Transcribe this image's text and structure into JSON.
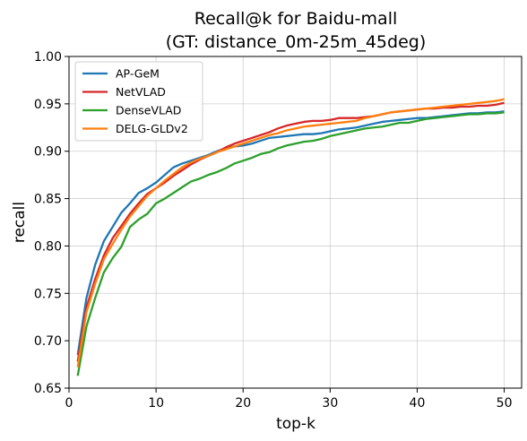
{
  "chart_data": {
    "type": "line",
    "title_lines": [
      "Recall@k for Baidu-mall",
      "(GT: distance_0m-25m_45deg)"
    ],
    "xlabel": "top-k",
    "ylabel": "recall",
    "xlim": [
      0,
      52
    ],
    "ylim": [
      0.65,
      1.0
    ],
    "xticks": [
      0,
      10,
      20,
      30,
      40,
      50
    ],
    "yticks": [
      0.65,
      0.7,
      0.75,
      0.8,
      0.85,
      0.9,
      0.95,
      1.0
    ],
    "xtick_labels": [
      "0",
      "10",
      "20",
      "30",
      "40",
      "50"
    ],
    "ytick_labels": [
      "0.65",
      "0.70",
      "0.75",
      "0.80",
      "0.85",
      "0.90",
      "0.95",
      "1.00"
    ],
    "grid": true,
    "legend_position": "top-left",
    "x": [
      1,
      2,
      3,
      4,
      5,
      6,
      7,
      8,
      9,
      10,
      11,
      12,
      13,
      14,
      15,
      16,
      17,
      18,
      19,
      20,
      21,
      22,
      23,
      24,
      25,
      26,
      27,
      28,
      29,
      30,
      31,
      32,
      33,
      34,
      35,
      36,
      37,
      38,
      39,
      40,
      41,
      42,
      43,
      44,
      45,
      46,
      47,
      48,
      49,
      50
    ],
    "series": [
      {
        "name": "AP-GeM",
        "color": "#1f77b4",
        "values": [
          0.685,
          0.745,
          0.78,
          0.805,
          0.82,
          0.835,
          0.845,
          0.856,
          0.861,
          0.867,
          0.875,
          0.883,
          0.887,
          0.89,
          0.893,
          0.896,
          0.9,
          0.903,
          0.905,
          0.906,
          0.908,
          0.911,
          0.914,
          0.915,
          0.916,
          0.917,
          0.918,
          0.918,
          0.919,
          0.921,
          0.923,
          0.924,
          0.925,
          0.927,
          0.929,
          0.931,
          0.932,
          0.933,
          0.934,
          0.935,
          0.935,
          0.936,
          0.937,
          0.938,
          0.939,
          0.94,
          0.94,
          0.941,
          0.941,
          0.942
        ]
      },
      {
        "name": "NetVLAD",
        "color": "#d62728",
        "values": [
          0.678,
          0.735,
          0.765,
          0.79,
          0.808,
          0.821,
          0.834,
          0.845,
          0.855,
          0.861,
          0.867,
          0.874,
          0.88,
          0.886,
          0.891,
          0.895,
          0.899,
          0.904,
          0.908,
          0.911,
          0.914,
          0.917,
          0.92,
          0.924,
          0.927,
          0.929,
          0.931,
          0.932,
          0.932,
          0.933,
          0.935,
          0.935,
          0.935,
          0.936,
          0.937,
          0.939,
          0.941,
          0.942,
          0.943,
          0.944,
          0.945,
          0.945,
          0.946,
          0.946,
          0.947,
          0.947,
          0.948,
          0.948,
          0.949,
          0.951
        ]
      },
      {
        "name": "DenseVLAD",
        "color": "#2ca02c",
        "values": [
          0.663,
          0.715,
          0.745,
          0.772,
          0.787,
          0.799,
          0.82,
          0.828,
          0.834,
          0.845,
          0.85,
          0.856,
          0.862,
          0.868,
          0.871,
          0.875,
          0.878,
          0.882,
          0.887,
          0.89,
          0.893,
          0.897,
          0.899,
          0.903,
          0.906,
          0.908,
          0.91,
          0.911,
          0.913,
          0.916,
          0.918,
          0.92,
          0.922,
          0.924,
          0.925,
          0.926,
          0.928,
          0.93,
          0.93,
          0.932,
          0.934,
          0.935,
          0.936,
          0.937,
          0.938,
          0.939,
          0.939,
          0.94,
          0.94,
          0.941
        ]
      },
      {
        "name": "DELG-GLDv2",
        "color": "#ff7f0e",
        "values": [
          0.672,
          0.73,
          0.76,
          0.786,
          0.802,
          0.817,
          0.831,
          0.842,
          0.853,
          0.861,
          0.869,
          0.876,
          0.883,
          0.888,
          0.892,
          0.895,
          0.899,
          0.902,
          0.905,
          0.908,
          0.911,
          0.914,
          0.917,
          0.919,
          0.922,
          0.924,
          0.926,
          0.927,
          0.928,
          0.929,
          0.93,
          0.931,
          0.932,
          0.935,
          0.937,
          0.939,
          0.941,
          0.942,
          0.943,
          0.944,
          0.945,
          0.946,
          0.947,
          0.948,
          0.949,
          0.95,
          0.951,
          0.952,
          0.953,
          0.955
        ]
      }
    ]
  }
}
